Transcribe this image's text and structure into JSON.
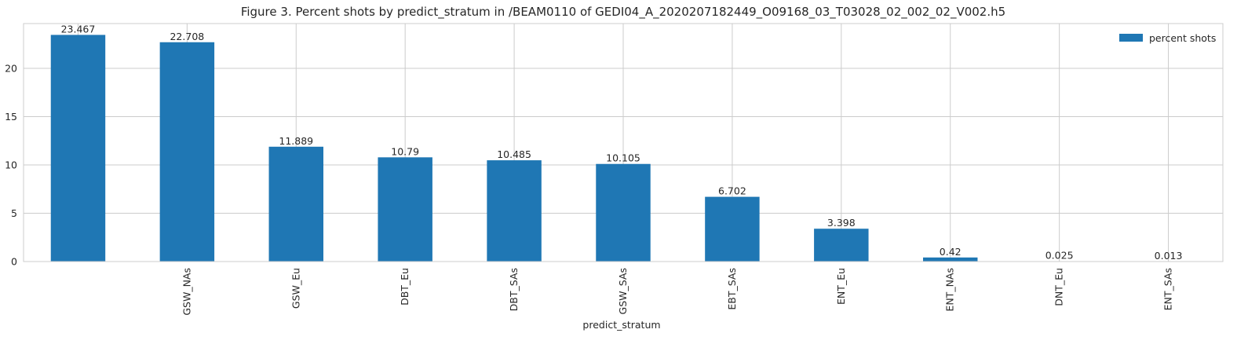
{
  "chart_data": {
    "type": "bar",
    "title": "Figure 3. Percent shots by predict_stratum in /BEAM0110 of GEDI04_A_2020207182449_O09168_03_T03028_02_002_02_V002.h5",
    "xlabel": "predict_stratum",
    "ylabel": "",
    "categories": [
      "",
      "GSW_NAs",
      "GSW_Eu",
      "DBT_Eu",
      "DBT_SAs",
      "GSW_SAs",
      "EBT_SAs",
      "ENT_Eu",
      "ENT_NAs",
      "DNT_Eu",
      "ENT_SAs"
    ],
    "series": [
      {
        "name": "percent shots",
        "values": [
          23.467,
          22.708,
          11.889,
          10.79,
          10.485,
          10.105,
          6.702,
          3.398,
          0.42,
          0.025,
          0.013
        ],
        "color": "#1f77b4"
      }
    ],
    "data_labels": [
      "23.467",
      "22.708",
      "11.889",
      "10.79",
      "10.485",
      "10.105",
      "6.702",
      "3.398",
      "0.42",
      "0.025",
      "0.013"
    ],
    "yticks": [
      "0",
      "5",
      "10",
      "15",
      "20"
    ],
    "ylim": [
      0,
      24.64
    ],
    "grid": true,
    "legend_position": "top-right"
  }
}
